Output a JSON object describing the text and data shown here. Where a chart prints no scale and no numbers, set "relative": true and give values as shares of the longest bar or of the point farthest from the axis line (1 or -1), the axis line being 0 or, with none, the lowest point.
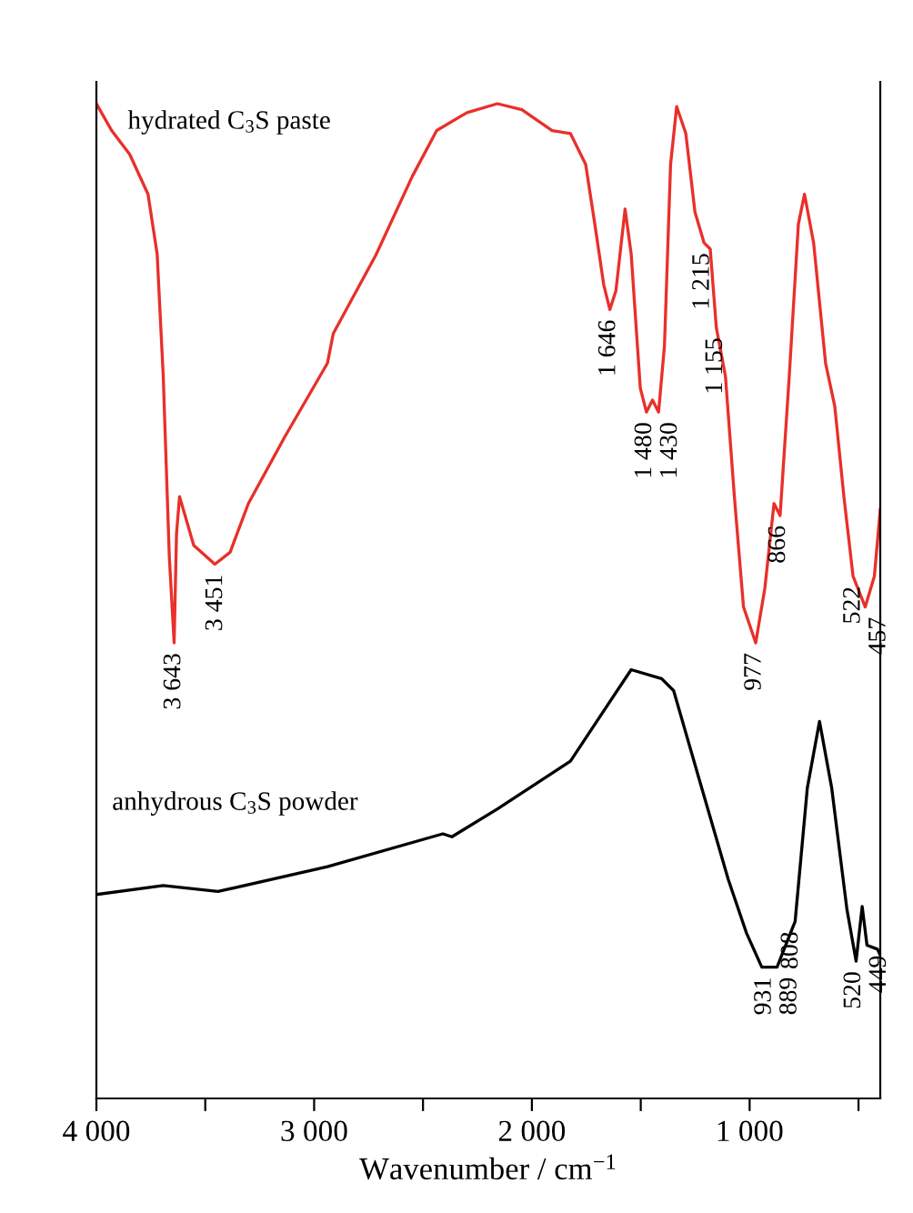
{
  "chart_data": {
    "type": "line",
    "relative": true,
    "xlabel": "Wavenumber / cm$^{−1}$",
    "xlim": [
      4000,
      400
    ],
    "xticks": [
      {
        "value": 4000,
        "label": "4 000"
      },
      {
        "value": 3500,
        "label": null
      },
      {
        "value": 3000,
        "label": "3 000"
      },
      {
        "value": 2500,
        "label": null
      },
      {
        "value": 2000,
        "label": "2 000"
      },
      {
        "value": 1500,
        "label": null
      },
      {
        "value": 1000,
        "label": "1 000"
      },
      {
        "value": 500,
        "label": null
      }
    ],
    "series": [
      {
        "name": "hydrated C$_{3}$S paste",
        "color": "#e8302a",
        "x": [
          4000,
          3930,
          3847,
          3763,
          3721,
          3693,
          3665,
          3643,
          3632,
          3618,
          3553,
          3456,
          3386,
          3302,
          3135,
          2939,
          2912,
          2716,
          2549,
          2437,
          2298,
          2158,
          2046,
          1907,
          1823,
          1753,
          1711,
          1670,
          1642,
          1614,
          1572,
          1544,
          1502,
          1474,
          1446,
          1418,
          1391,
          1363,
          1335,
          1293,
          1251,
          1209,
          1181,
          1153,
          1111,
          1070,
          1028,
          972,
          930,
          888,
          860,
          818,
          776,
          748,
          706,
          651,
          609,
          567,
          525,
          469,
          427,
          400
        ],
        "values": [
          1.0,
          0.973,
          0.949,
          0.909,
          0.849,
          0.726,
          0.544,
          0.458,
          0.568,
          0.605,
          0.556,
          0.537,
          0.549,
          0.598,
          0.665,
          0.739,
          0.769,
          0.848,
          0.927,
          0.973,
          0.991,
          1.0,
          0.994,
          0.973,
          0.97,
          0.939,
          0.879,
          0.818,
          0.793,
          0.812,
          0.894,
          0.849,
          0.714,
          0.69,
          0.702,
          0.69,
          0.757,
          0.939,
          0.997,
          0.97,
          0.891,
          0.86,
          0.854,
          0.775,
          0.726,
          0.605,
          0.494,
          0.458,
          0.513,
          0.598,
          0.586,
          0.726,
          0.879,
          0.909,
          0.86,
          0.739,
          0.696,
          0.605,
          0.525,
          0.494,
          0.525,
          0.592
        ]
      },
      {
        "name": "anhydrous C$_{3}$S powder",
        "color": "#000000",
        "x": [
          4000,
          3693,
          3442,
          2939,
          2409,
          2367,
          2158,
          1823,
          1684,
          1544,
          1404,
          1349,
          1237,
          1098,
          1014,
          944,
          874,
          791,
          735,
          679,
          623,
          553,
          511,
          483,
          461,
          413,
          400
        ],
        "values": [
          0.205,
          0.214,
          0.208,
          0.233,
          0.266,
          0.263,
          0.291,
          0.339,
          0.385,
          0.431,
          0.422,
          0.41,
          0.325,
          0.22,
          0.166,
          0.132,
          0.132,
          0.178,
          0.312,
          0.379,
          0.312,
          0.19,
          0.138,
          0.193,
          0.154,
          0.15,
          0.144
        ]
      }
    ],
    "annotations": [
      {
        "text": "3 643",
        "x": 3643,
        "y": 0.458
      },
      {
        "text": "3 451",
        "x": 3451,
        "y": 0.537
      },
      {
        "text": "1 646",
        "x": 1646,
        "y": 0.793
      },
      {
        "text": "1 480",
        "x": 1480,
        "y": 0.69
      },
      {
        "text": "1 430",
        "x": 1430,
        "y": 0.69
      },
      {
        "text": "1 215",
        "x": 1215,
        "y": 0.86
      },
      {
        "text": "1 155",
        "x": 1155,
        "y": 0.775
      },
      {
        "text": "977",
        "x": 977,
        "y": 0.458
      },
      {
        "text": "866",
        "x": 866,
        "y": 0.586
      },
      {
        "text": "522",
        "x": 522,
        "y": 0.525
      },
      {
        "text": "457",
        "x": 457,
        "y": 0.494
      },
      {
        "text": "931",
        "x": 931,
        "y": 0.132
      },
      {
        "text": "889",
        "x": 889,
        "y": 0.132
      },
      {
        "text": "808",
        "x": 808,
        "y": 0.178
      },
      {
        "text": "520",
        "x": 520,
        "y": 0.138
      },
      {
        "text": "449",
        "x": 449,
        "y": 0.154
      }
    ]
  }
}
